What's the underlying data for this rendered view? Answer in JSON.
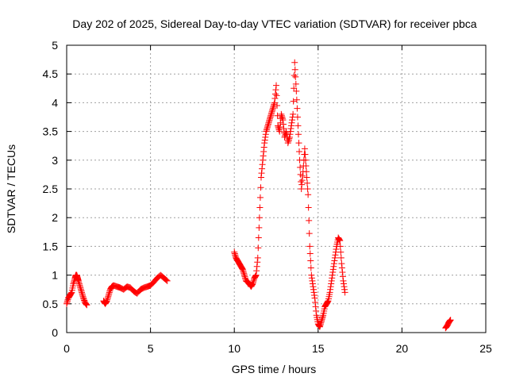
{
  "chart_data": {
    "type": "scatter",
    "title": "Day 202 of 2025, Sidereal Day-to-day VTEC variation (SDTVAR) for receiver pbca",
    "xlabel": "GPS time / hours",
    "ylabel": "SDTVAR / TECUs",
    "xlim": [
      0,
      25
    ],
    "ylim": [
      0,
      5
    ],
    "xticks": [
      0,
      5,
      10,
      15,
      20,
      25
    ],
    "xtick_labels": [
      "0",
      "5",
      "10",
      "15",
      "20",
      "25"
    ],
    "yticks": [
      0,
      0.5,
      1,
      1.5,
      2,
      2.5,
      3,
      3.5,
      4,
      4.5,
      5
    ],
    "ytick_labels": [
      "0",
      "0.5",
      "1",
      "1.5",
      "2",
      "2.5",
      "3",
      "3.5",
      "4",
      "4.5",
      "5"
    ],
    "grid": true,
    "marker": "+",
    "color": "#ff0000",
    "series": [
      {
        "name": "SDTVAR",
        "segments": [
          {
            "x": [
              0.0,
              0.1,
              0.2,
              0.3,
              0.4,
              0.5,
              0.55,
              0.6,
              0.65,
              0.7,
              0.8,
              0.9,
              1.0,
              1.1,
              1.2
            ],
            "y": [
              0.5,
              0.6,
              0.65,
              0.7,
              0.85,
              0.95,
              1.0,
              1.0,
              0.95,
              0.9,
              0.8,
              0.7,
              0.6,
              0.52,
              0.48
            ]
          },
          {
            "x": [
              2.2,
              2.3,
              2.4,
              2.5,
              2.6,
              2.7,
              2.8,
              3.0,
              3.2,
              3.4,
              3.6,
              3.8,
              4.0,
              4.2,
              4.4,
              4.6,
              4.8,
              5.0,
              5.2,
              5.4,
              5.6,
              5.8,
              6.0
            ],
            "y": [
              0.55,
              0.5,
              0.55,
              0.65,
              0.75,
              0.8,
              0.82,
              0.8,
              0.78,
              0.75,
              0.8,
              0.78,
              0.72,
              0.68,
              0.75,
              0.78,
              0.8,
              0.82,
              0.88,
              0.95,
              1.0,
              0.95,
              0.9
            ]
          },
          {
            "x": [
              10.0,
              10.1,
              10.2,
              10.3,
              10.4,
              10.5,
              10.6,
              10.7,
              10.8,
              10.9,
              11.0,
              11.1,
              11.2,
              11.3,
              11.4,
              11.5,
              11.6,
              11.7,
              11.8,
              11.9,
              12.0,
              12.1,
              12.2,
              12.3,
              12.4,
              12.5,
              12.6,
              12.7,
              12.8,
              12.9,
              13.0,
              13.1,
              13.2,
              13.3,
              13.4,
              13.5,
              13.6,
              13.7,
              13.8,
              13.9,
              14.0,
              14.1,
              14.2,
              14.3,
              14.4,
              14.5,
              14.6,
              14.7,
              14.8,
              14.9,
              15.0,
              15.1,
              15.2,
              15.3,
              15.4,
              15.5,
              15.6,
              15.7,
              15.8,
              15.9,
              16.0,
              16.1,
              16.2,
              16.3,
              16.4,
              16.5,
              16.6
            ],
            "y": [
              1.4,
              1.3,
              1.25,
              1.2,
              1.15,
              1.1,
              1.0,
              0.9,
              0.88,
              0.85,
              0.8,
              0.85,
              0.95,
              1.0,
              1.3,
              2.0,
              2.7,
              3.0,
              3.3,
              3.5,
              3.6,
              3.7,
              3.8,
              3.9,
              4.0,
              4.3,
              3.6,
              3.5,
              3.8,
              3.7,
              3.4,
              3.5,
              3.3,
              3.4,
              3.6,
              3.8,
              4.7,
              4.2,
              3.6,
              3.0,
              2.5,
              2.8,
              3.2,
              2.8,
              2.4,
              1.5,
              1.0,
              0.8,
              0.6,
              0.3,
              0.15,
              0.1,
              0.2,
              0.3,
              0.45,
              0.5,
              0.55,
              0.7,
              0.9,
              1.1,
              1.3,
              1.5,
              1.65,
              1.6,
              1.2,
              0.9,
              0.7
            ]
          },
          {
            "x": [
              22.6,
              22.7,
              22.8,
              22.9
            ],
            "y": [
              0.08,
              0.12,
              0.18,
              0.22
            ]
          }
        ]
      }
    ]
  }
}
